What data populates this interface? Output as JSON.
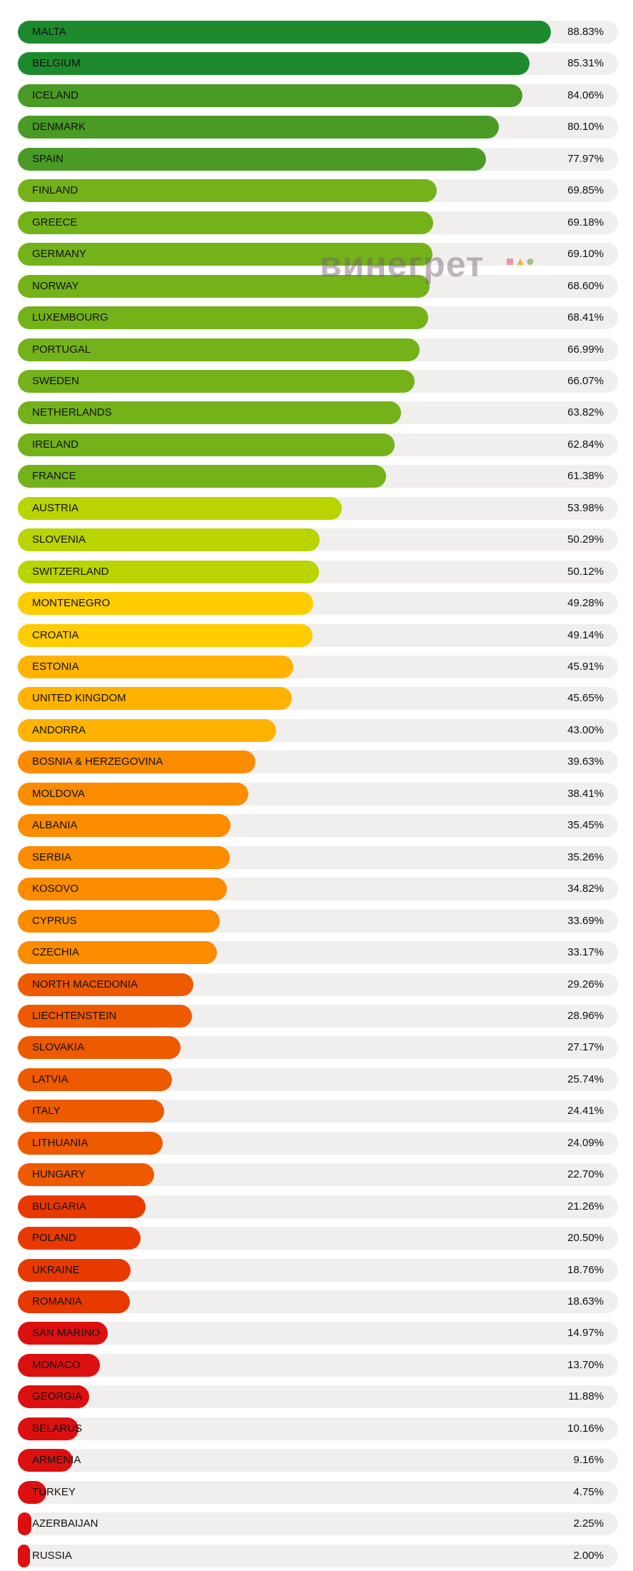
{
  "watermark": "винегрет",
  "chart_data": {
    "type": "bar",
    "orientation": "horizontal",
    "xlim": [
      0,
      100
    ],
    "unit": "%",
    "grid": false,
    "legend": "none",
    "colors": {
      "dark_green": "#1e8a2e",
      "green": "#4a9b26",
      "light_green": "#74b21a",
      "yellow_green": "#b9d400",
      "yellow": "#ffcc00",
      "amber": "#ffb300",
      "orange": "#fb8c00",
      "dark_orange": "#ee5a00",
      "red_orange": "#e83a00",
      "red": "#dd1010",
      "track": "#f0efee"
    },
    "categories": [
      "MALTA",
      "BELGIUM",
      "ICELAND",
      "DENMARK",
      "SPAIN",
      "FINLAND",
      "GREECE",
      "GERMANY",
      "NORWAY",
      "LUXEMBOURG",
      "PORTUGAL",
      "SWEDEN",
      "NETHERLANDS",
      "IRELAND",
      "FRANCE",
      "AUSTRIA",
      "SLOVENIA",
      "SWITZERLAND",
      "MONTENEGRO",
      "CROATIA",
      "ESTONIA",
      "UNITED KINGDOM",
      "ANDORRA",
      "BOSNIA & HERZEGOVINA",
      "MOLDOVA",
      "ALBANIA",
      "SERBIA",
      "KOSOVO",
      "CYPRUS",
      "CZECHIA",
      "NORTH MACEDONIA",
      "LIECHTENSTEIN",
      "SLOVAKIA",
      "LATVIA",
      "ITALY",
      "LITHUANIA",
      "HUNGARY",
      "BULGARIA",
      "POLAND",
      "UKRAINE",
      "ROMANIA",
      "SAN MARINO",
      "MONACO",
      "GEORGIA",
      "BELARUS",
      "ARMENIA",
      "TURKEY",
      "AZERBAIJAN",
      "RUSSIA"
    ],
    "values": [
      88.83,
      85.31,
      84.06,
      80.1,
      77.97,
      69.85,
      69.18,
      69.1,
      68.6,
      68.41,
      66.99,
      66.07,
      63.82,
      62.84,
      61.38,
      53.98,
      50.29,
      50.12,
      49.28,
      49.14,
      45.91,
      45.65,
      43.0,
      39.63,
      38.41,
      35.45,
      35.26,
      34.82,
      33.69,
      33.17,
      29.26,
      28.96,
      27.17,
      25.74,
      24.41,
      24.09,
      22.7,
      21.26,
      20.5,
      18.76,
      18.63,
      14.97,
      13.7,
      11.88,
      10.16,
      9.16,
      4.75,
      2.25,
      2.0
    ],
    "value_labels": [
      "88.83%",
      "85.31%",
      "84.06%",
      "80.10%",
      "77.97%",
      "69.85%",
      "69.18%",
      "69.10%",
      "68.60%",
      "68.41%",
      "66.99%",
      "66.07%",
      "63.82%",
      "62.84%",
      "61.38%",
      "53.98%",
      "50.29%",
      "50.12%",
      "49.28%",
      "49.14%",
      "45.91%",
      "45.65%",
      "43.00%",
      "39.63%",
      "38.41%",
      "35.45%",
      "35.26%",
      "34.82%",
      "33.69%",
      "33.17%",
      "29.26%",
      "28.96%",
      "27.17%",
      "25.74%",
      "24.41%",
      "24.09%",
      "22.70%",
      "21.26%",
      "20.50%",
      "18.76%",
      "18.63%",
      "14.97%",
      "13.70%",
      "11.88%",
      "10.16%",
      "9.16%",
      "4.75%",
      "2.25%",
      "2.00%"
    ]
  }
}
